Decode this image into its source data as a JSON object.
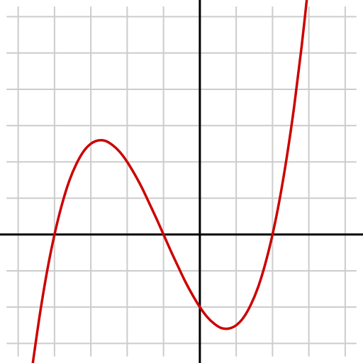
{
  "chart_data": {
    "type": "line",
    "xlim": [
      -5.5,
      4.49
    ],
    "ylim": [
      -3.54,
      6.46
    ],
    "xticks": [
      -5,
      -4,
      -3,
      -2,
      -1,
      0,
      1,
      2,
      3,
      4
    ],
    "yticks": [
      -3,
      -2,
      -1,
      0,
      1,
      2,
      3,
      4,
      5,
      6
    ],
    "grid": true,
    "grid_color": "#cccccc",
    "axis_color": "#000000",
    "x": [
      -4.6,
      -4.4,
      -4.2,
      -4.0,
      -3.8,
      -3.6,
      -3.4,
      -3.2,
      -3.0,
      -2.8,
      -2.6,
      -2.4,
      -2.2,
      -2.0,
      -1.8,
      -1.6,
      -1.4,
      -1.2,
      -1.0,
      -0.8,
      -0.6,
      -0.4,
      -0.2,
      0,
      0.2,
      0.4,
      0.6,
      0.8,
      1.0,
      1.2,
      1.4,
      1.6,
      1.8,
      2.0,
      2.2,
      2.4,
      2.6,
      2.8,
      3.0
    ],
    "series": [
      {
        "color": "#cc0000",
        "values": [
          -3.56,
          -2.18,
          -0.99,
          0,
          0.81,
          1.46,
          1.94,
          2.29,
          2.5,
          2.59,
          2.58,
          2.46,
          2.27,
          2,
          1.67,
          1.3,
          0.88,
          0.45,
          0,
          -0.45,
          -0.88,
          -1.3,
          -1.67,
          -2,
          -2.27,
          -2.46,
          -2.58,
          -2.59,
          -2.5,
          -2.29,
          -1.94,
          -1.46,
          -0.81,
          0,
          0.99,
          2.18,
          3.56,
          5.17,
          7
        ]
      }
    ]
  }
}
